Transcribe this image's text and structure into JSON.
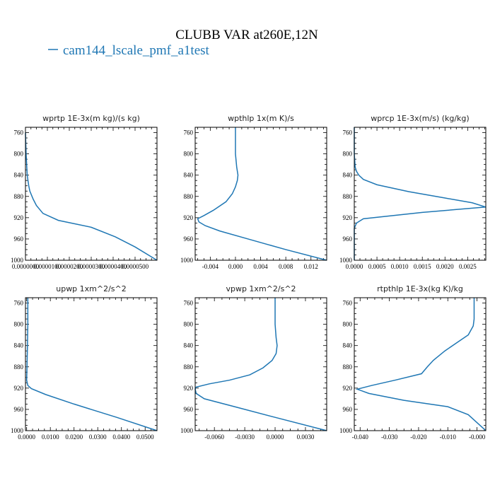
{
  "figure": {
    "title": "CLUBB VAR at260E,12N",
    "legend_label": "cam144_lscale_pmf_a1test",
    "legend_color": "#1f77b4",
    "series_color": "#1f77b4"
  },
  "chart_data": [
    {
      "type": "line",
      "title": "wprtp   1E-3x(m kg)/(s kg)",
      "xlim": [
        0.0,
        6e-05
      ],
      "ylim": [
        1000,
        750
      ],
      "x_ticks": [
        0.0,
        1e-05,
        2e-05,
        3e-05,
        4e-05,
        5e-05
      ],
      "x_tick_labels": [
        "0.0000000",
        "0.0000100",
        "0.0000200",
        "0.0000300",
        "0.0000400",
        "0.0000500"
      ],
      "y_ticks": [
        760,
        800,
        840,
        880,
        920,
        960,
        1000
      ],
      "y_tick_labels": [
        "760",
        "800",
        "840",
        "880",
        "920",
        "960",
        "1000"
      ],
      "series": [
        {
          "x": [
            0.0,
            3e-07,
            8e-07,
            1.5e-06,
            2e-06,
            3.5e-06,
            5e-06,
            8e-06,
            1.5e-05,
            3e-05,
            4.1e-05,
            5e-05,
            6e-05
          ],
          "y": [
            760,
            800,
            840,
            860,
            870,
            885,
            897,
            912,
            925,
            938,
            956,
            975,
            1000
          ]
        }
      ]
    },
    {
      "type": "line",
      "title": "wpthlp   1x(m K)/s",
      "xlim": [
        -0.0064,
        0.0145
      ],
      "ylim": [
        1000,
        750
      ],
      "x_ticks": [
        -0.004,
        0.0,
        0.004,
        0.008,
        0.012
      ],
      "x_tick_labels": [
        "-0.004",
        "0.000",
        "0.004",
        "0.008",
        "0.012"
      ],
      "y_ticks": [
        760,
        800,
        840,
        880,
        920,
        960,
        1000
      ],
      "y_tick_labels": [
        "760",
        "800",
        "840",
        "880",
        "920",
        "960",
        "1000"
      ],
      "series": [
        {
          "x": [
            0.0,
            0.0,
            0.0002,
            0.0004,
            0.0003,
            0.0,
            -0.0005,
            -0.0015,
            -0.0035,
            -0.005,
            -0.006,
            -0.0058,
            -0.0048,
            -0.0025,
            0.002,
            0.008,
            0.0145
          ],
          "y": [
            750,
            800,
            825,
            840,
            850,
            862,
            875,
            890,
            906,
            916,
            922,
            928,
            935,
            945,
            960,
            980,
            1000
          ]
        }
      ]
    },
    {
      "type": "line",
      "title": "wprcp   1E-3x(m/s) (kg/kg)",
      "xlim": [
        0.0,
        0.0029
      ],
      "ylim": [
        1000,
        750
      ],
      "x_ticks": [
        0.0,
        0.0005,
        0.001,
        0.0015,
        0.002,
        0.0025
      ],
      "x_tick_labels": [
        "0.0000",
        "0.0005",
        "0.0010",
        "0.0015",
        "0.0020",
        "0.0025"
      ],
      "y_ticks": [
        760,
        800,
        840,
        880,
        920,
        960,
        1000
      ],
      "y_tick_labels": [
        "760",
        "800",
        "840",
        "880",
        "920",
        "960",
        "1000"
      ],
      "series": [
        {
          "x": [
            0.0,
            0.0,
            2e-05,
            5e-05,
            0.0001,
            0.0002,
            0.0005,
            0.0012,
            0.002,
            0.0026,
            0.0029,
            0.0015,
            0.0002,
            5e-05,
            0.0,
            0.0
          ],
          "y": [
            750,
            800,
            825,
            833,
            840,
            848,
            858,
            871,
            883,
            892,
            900,
            910,
            922,
            930,
            940,
            1000
          ]
        }
      ]
    },
    {
      "type": "line",
      "title": "upwp   1xm^2/s^2",
      "xlim": [
        -0.0005,
        0.055
      ],
      "ylim": [
        1000,
        750
      ],
      "x_ticks": [
        0.0,
        0.01,
        0.02,
        0.03,
        0.04,
        0.05
      ],
      "x_tick_labels": [
        "0.0000",
        "0.0100",
        "0.0200",
        "0.0300",
        "0.0400",
        "0.0500"
      ],
      "y_ticks": [
        760,
        800,
        840,
        880,
        920,
        960,
        1000
      ],
      "y_tick_labels": [
        "760",
        "800",
        "840",
        "880",
        "920",
        "960",
        "1000"
      ],
      "series": [
        {
          "x": [
            0.0005,
            0.0005,
            0.0003,
            0.0001,
            0.0,
            0.0005,
            0.002,
            0.008,
            0.02,
            0.038,
            0.055
          ],
          "y": [
            750,
            800,
            850,
            890,
            905,
            915,
            921,
            932,
            950,
            975,
            1000
          ]
        }
      ]
    },
    {
      "type": "line",
      "title": "vpwp   1xm^2/s^2",
      "xlim": [
        -0.0079,
        0.0051
      ],
      "ylim": [
        1000,
        750
      ],
      "x_ticks": [
        -0.006,
        -0.003,
        0.0,
        0.003
      ],
      "x_tick_labels": [
        "-0.0060",
        "-0.0030",
        "0.0000",
        "0.0030"
      ],
      "y_ticks": [
        760,
        800,
        840,
        880,
        920,
        960,
        1000
      ],
      "y_tick_labels": [
        "760",
        "800",
        "840",
        "880",
        "920",
        "960",
        "1000"
      ],
      "series": [
        {
          "x": [
            0.0,
            0.0,
            0.0001,
            0.0002,
            0.0001,
            -0.0003,
            -0.0012,
            -0.0025,
            -0.0045,
            -0.0065,
            -0.0078,
            -0.0079,
            -0.0078,
            -0.007,
            -0.004,
            0.0,
            0.0051
          ],
          "y": [
            750,
            800,
            825,
            840,
            855,
            868,
            882,
            895,
            905,
            912,
            918,
            922,
            930,
            940,
            955,
            975,
            1000
          ]
        }
      ]
    },
    {
      "type": "line",
      "title": "rtpthlp   1E-3x(kg K)/kg",
      "xlim": [
        -0.042,
        0.003
      ],
      "ylim": [
        1000,
        750
      ],
      "x_ticks": [
        -0.04,
        -0.03,
        -0.02,
        -0.01,
        0.0
      ],
      "x_tick_labels": [
        "-0.040",
        "-0.030",
        "-0.020",
        "-0.010",
        "-0.000"
      ],
      "y_ticks": [
        760,
        800,
        840,
        880,
        920,
        960,
        1000
      ],
      "y_tick_labels": [
        "760",
        "800",
        "840",
        "880",
        "920",
        "960",
        "1000"
      ],
      "series": [
        {
          "x": [
            -0.001,
            -0.001,
            -0.0013,
            -0.003,
            -0.007,
            -0.011,
            -0.015,
            -0.017,
            -0.019,
            -0.028,
            -0.036,
            -0.041,
            -0.037,
            -0.025,
            -0.01,
            -0.003,
            0.0,
            0.002,
            0.003
          ],
          "y": [
            750,
            790,
            803,
            820,
            835,
            850,
            868,
            880,
            893,
            905,
            915,
            922,
            930,
            943,
            955,
            970,
            985,
            995,
            1000
          ]
        }
      ]
    }
  ]
}
